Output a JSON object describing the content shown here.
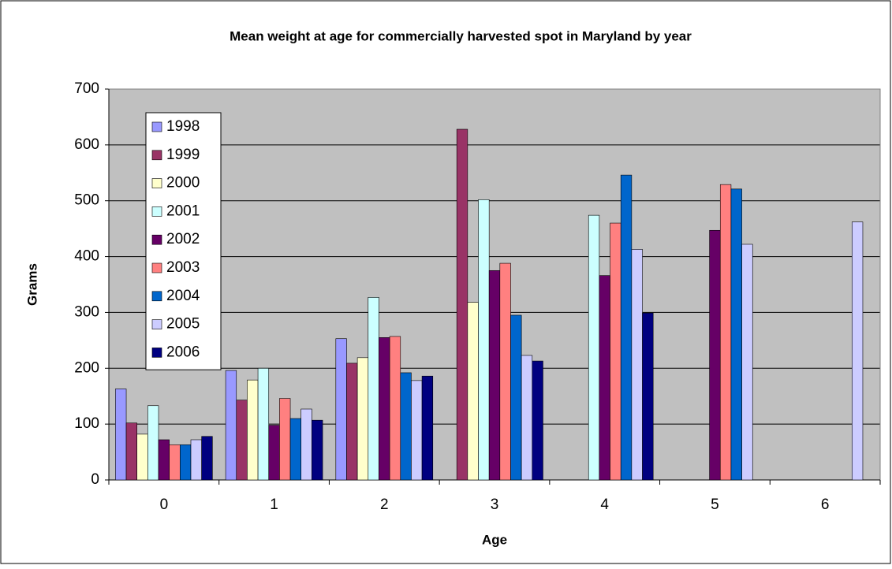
{
  "chart_data": {
    "type": "bar",
    "title": "Mean weight at age for commercially harvested spot in Maryland by year",
    "x_label": "Age",
    "y_label": "Grams",
    "categories": [
      "0",
      "1",
      "2",
      "3",
      "4",
      "5",
      "6"
    ],
    "series": [
      {
        "name": "1998",
        "color": "#9999ff",
        "values": [
          163,
          196,
          253,
          null,
          null,
          null,
          null
        ]
      },
      {
        "name": "1999",
        "color": "#993366",
        "values": [
          102,
          143,
          209,
          628,
          null,
          null,
          null
        ]
      },
      {
        "name": "2000",
        "color": "#ffffcc",
        "values": [
          82,
          179,
          219,
          318,
          null,
          null,
          null
        ]
      },
      {
        "name": "2001",
        "color": "#ccffff",
        "values": [
          133,
          200,
          327,
          502,
          474,
          null,
          null
        ]
      },
      {
        "name": "2002",
        "color": "#660066",
        "values": [
          72,
          98,
          255,
          375,
          366,
          447,
          null
        ]
      },
      {
        "name": "2003",
        "color": "#ff8080",
        "values": [
          63,
          146,
          257,
          388,
          460,
          529,
          null
        ]
      },
      {
        "name": "2004",
        "color": "#0066cc",
        "values": [
          63,
          110,
          192,
          295,
          546,
          521,
          null
        ]
      },
      {
        "name": "2005",
        "color": "#ccccff",
        "values": [
          72,
          127,
          178,
          223,
          413,
          422,
          462
        ]
      },
      {
        "name": "2006",
        "color": "#000080",
        "values": [
          78,
          107,
          186,
          213,
          299,
          null,
          null
        ]
      }
    ],
    "ylim": [
      0,
      700
    ],
    "yticks": [
      0,
      100,
      200,
      300,
      400,
      500,
      600,
      700
    ],
    "grid": true,
    "plot_background": "#c0c0c0",
    "legend": "upper-left"
  }
}
